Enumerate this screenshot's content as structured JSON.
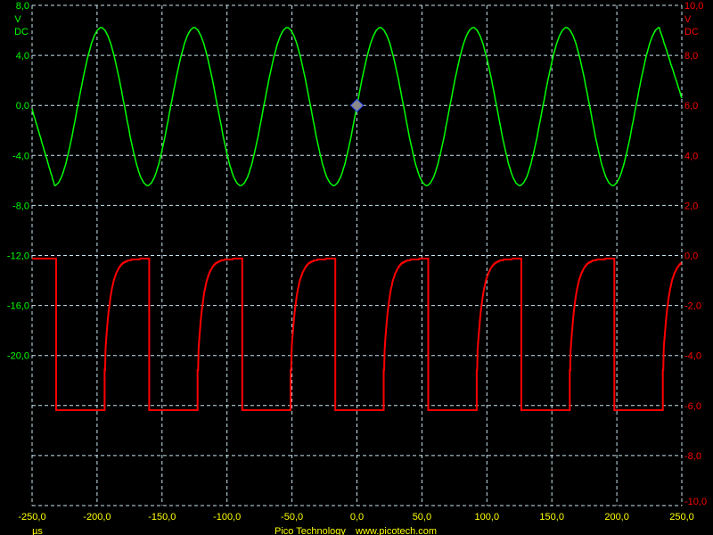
{
  "chart_data": {
    "type": "line",
    "title": "",
    "grid": true,
    "background": "#000000",
    "grid_color": "#c8e4f0",
    "x_axis": {
      "unit_label": "µs",
      "range": [
        -250,
        250
      ],
      "tick_values": [
        -250,
        -200,
        -150,
        -100,
        -50,
        0,
        50,
        100,
        150,
        200,
        250
      ],
      "tick_labels": [
        "-250,0",
        "-200,0",
        "-150,0",
        "-100,0",
        "-50,0",
        "0,0",
        "50,0",
        "100,0",
        "150,0",
        "200,0",
        "250,0"
      ],
      "color": "#ffff00"
    },
    "y_axis_left": {
      "unit_label": "V",
      "coupling_label": "DC",
      "range": [
        -32,
        8
      ],
      "tick_values": [
        8,
        4,
        0,
        -4,
        -8,
        -12,
        -16,
        -20
      ],
      "tick_labels": [
        "8,0",
        "4,0",
        "0,0",
        "-4,0",
        "-8,0",
        "-12,0",
        "-16,0",
        "-20,0"
      ],
      "color": "#00ff00"
    },
    "y_axis_right": {
      "unit_label": "V",
      "coupling_label": "DC",
      "range": [
        -10,
        10
      ],
      "tick_values": [
        10,
        8,
        6,
        4,
        2,
        0,
        -2,
        -4,
        -6,
        -8,
        -10
      ],
      "tick_labels": [
        "10,0",
        "8,0",
        "6,0",
        "4,0",
        "2,0",
        "0,0",
        "-2,0",
        "-4,0",
        "-6,0",
        "-8,0",
        "-10,0"
      ],
      "color": "#ff0000"
    },
    "series": [
      {
        "axis": "left",
        "waveform": "sine",
        "color": "#00ff00",
        "points": [
          [
            -250,
            -0.3
          ],
          [
            -232.7,
            -6.4
          ],
          [
            -214.8,
            0
          ],
          [
            -196.9,
            6.2
          ],
          [
            -179.0,
            0
          ],
          [
            -161.1,
            -6.4
          ],
          [
            -143.2,
            0
          ],
          [
            -125.3,
            6.2
          ],
          [
            -107.4,
            0
          ],
          [
            -89.5,
            -6.4
          ],
          [
            -71.6,
            0
          ],
          [
            -53.7,
            6.2
          ],
          [
            -35.8,
            0
          ],
          [
            -17.9,
            -6.4
          ],
          [
            0,
            0
          ],
          [
            17.9,
            6.2
          ],
          [
            35.8,
            0
          ],
          [
            53.7,
            -6.4
          ],
          [
            71.6,
            0
          ],
          [
            89.5,
            6.2
          ],
          [
            107.4,
            0
          ],
          [
            125.3,
            -6.4
          ],
          [
            143.2,
            0
          ],
          [
            161.1,
            6.2
          ],
          [
            179.0,
            0
          ],
          [
            196.9,
            -6.4
          ],
          [
            214.8,
            0
          ],
          [
            232.7,
            6.2
          ],
          [
            250,
            0.6
          ]
        ]
      },
      {
        "axis": "right",
        "waveform": "square",
        "color": "#ff0000",
        "high_v": -0.15,
        "low_v": -6.2,
        "falling_edges_us": [
          -231.5,
          -159.9,
          -88.3,
          -16.7,
          54.9,
          126.5,
          198.1
        ],
        "rising_edges_us": [
          -194.2,
          -122.6,
          -51.0,
          20.6,
          92.2,
          163.8,
          235.4
        ]
      }
    ],
    "trigger_marker": {
      "time_us": 0,
      "level_v": 0,
      "color": "#8a8a8a",
      "outline": "#2040ff"
    }
  },
  "footer": {
    "brand": "Pico Technology",
    "url": "www.picotech.com",
    "color": "#ffff00"
  }
}
